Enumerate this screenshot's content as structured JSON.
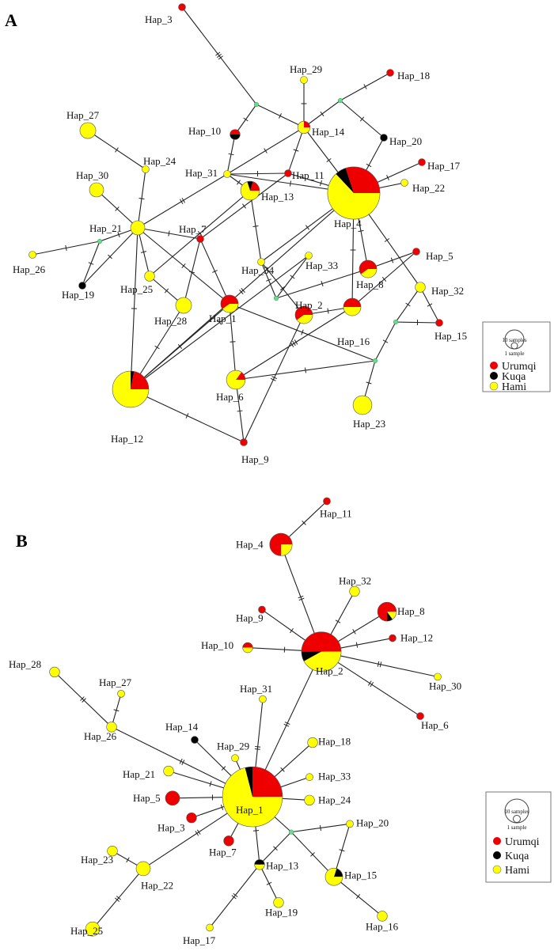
{
  "colors": {
    "Urumqi": "#ee0000",
    "Kuqa": "#000000",
    "Hami": "#ffff00",
    "median": "#66dd88"
  },
  "legend": {
    "large_label": "10 samples",
    "small_label": "1 sample",
    "populations": [
      "Urumqi",
      "Kuqa",
      "Hami"
    ]
  },
  "panels": [
    {
      "letter": "A",
      "nodes": [
        {
          "id": "Hap_3",
          "n": 1,
          "f": [
            1,
            0,
            0
          ]
        },
        {
          "id": "Hap_29",
          "n": 1,
          "f": [
            0,
            0,
            1
          ]
        },
        {
          "id": "Hap_18",
          "n": 1,
          "f": [
            1,
            0,
            0
          ]
        },
        {
          "id": "Hap_14",
          "n": 3,
          "f": [
            0.25,
            0,
            0.75
          ]
        },
        {
          "id": "Hap_10",
          "n": 2,
          "f": [
            0.5,
            0.5,
            0
          ]
        },
        {
          "id": "Hap_20",
          "n": 1,
          "f": [
            0,
            1,
            0
          ]
        },
        {
          "id": "Hap_17",
          "n": 1,
          "f": [
            1,
            0,
            0
          ]
        },
        {
          "id": "Hap_27",
          "n": 5,
          "f": [
            0,
            0,
            1
          ]
        },
        {
          "id": "Hap_24",
          "n": 1,
          "f": [
            0,
            0,
            1
          ]
        },
        {
          "id": "Hap_30",
          "n": 4,
          "f": [
            0,
            0,
            1
          ]
        },
        {
          "id": "Hap_31",
          "n": 1,
          "f": [
            0,
            0,
            1
          ]
        },
        {
          "id": "Hap_11",
          "n": 1,
          "f": [
            1,
            0,
            0
          ]
        },
        {
          "id": "Hap_4",
          "n": 54,
          "f": [
            0.3,
            0.07,
            0.63
          ]
        },
        {
          "id": "Hap_22",
          "n": 1,
          "f": [
            0,
            0,
            1
          ]
        },
        {
          "id": "Hap_13",
          "n": 7,
          "f": [
            0.2,
            0.1,
            0.7
          ]
        },
        {
          "id": "Hap_21",
          "n": 4,
          "f": [
            0,
            0,
            1
          ]
        },
        {
          "id": "Hap_7",
          "n": 1,
          "f": [
            1,
            0,
            0
          ]
        },
        {
          "id": "Hap_26",
          "n": 1,
          "f": [
            0,
            0,
            1
          ]
        },
        {
          "id": "Hap_34",
          "n": 1,
          "f": [
            0,
            0,
            1
          ]
        },
        {
          "id": "Hap_33",
          "n": 1,
          "f": [
            0,
            0,
            1
          ]
        },
        {
          "id": "Hap_5",
          "n": 1,
          "f": [
            1,
            0,
            0
          ]
        },
        {
          "id": "Hap_8",
          "n": 6,
          "f": [
            0.6,
            0,
            0.4
          ]
        },
        {
          "id": "Hap_19",
          "n": 1,
          "f": [
            0,
            1,
            0
          ]
        },
        {
          "id": "Hap_25",
          "n": 2,
          "f": [
            0,
            0,
            1
          ]
        },
        {
          "id": "Hap_32",
          "n": 2,
          "f": [
            0,
            0,
            1
          ]
        },
        {
          "id": "Hap_28",
          "n": 5,
          "f": [
            0,
            0,
            1
          ]
        },
        {
          "id": "Hap_1",
          "n": 6,
          "f": [
            0.6,
            0,
            0.4
          ]
        },
        {
          "id": "Hap_2",
          "n": 6,
          "f": [
            0.6,
            0,
            0.4
          ]
        },
        {
          "id": "Hap_16",
          "n": 6,
          "f": [
            0.5,
            0,
            0.5
          ]
        },
        {
          "id": "Hap_15",
          "n": 1,
          "f": [
            1,
            0,
            0
          ]
        },
        {
          "id": "Hap_6",
          "n": 7,
          "f": [
            0.15,
            0,
            0.85
          ]
        },
        {
          "id": "Hap_23",
          "n": 7,
          "f": [
            0,
            0,
            1
          ]
        },
        {
          "id": "Hap_12",
          "n": 26,
          "f": [
            0.22,
            0.03,
            0.75
          ]
        },
        {
          "id": "Hap_9",
          "n": 1,
          "f": [
            1,
            0,
            0
          ]
        }
      ],
      "medians": [
        "mA1",
        "mA2",
        "mA3",
        "mA4",
        "mA5",
        "mA6"
      ],
      "edges": [
        [
          "Hap_3",
          "mA1",
          3
        ],
        [
          "mA1",
          "Hap_10",
          1
        ],
        [
          "mA1",
          "Hap_14",
          1
        ],
        [
          "Hap_29",
          "Hap_14",
          1
        ],
        [
          "Hap_14",
          "mA2",
          1
        ],
        [
          "mA2",
          "Hap_18",
          1
        ],
        [
          "mA2",
          "Hap_20",
          1
        ],
        [
          "Hap_20",
          "Hap_4",
          1
        ],
        [
          "Hap_17",
          "Hap_4",
          1
        ],
        [
          "Hap_22",
          "Hap_4",
          0
        ],
        [
          "Hap_14",
          "Hap_4",
          1
        ],
        [
          "Hap_14",
          "Hap_11",
          1
        ],
        [
          "Hap_14",
          "Hap_31",
          1
        ],
        [
          "Hap_10",
          "Hap_31",
          1
        ],
        [
          "Hap_31",
          "Hap_11",
          1
        ],
        [
          "Hap_11",
          "Hap_4",
          1
        ],
        [
          "Hap_31",
          "Hap_4",
          1
        ],
        [
          "Hap_31",
          "Hap_13",
          1
        ],
        [
          "Hap_31",
          "Hap_21",
          2
        ],
        [
          "Hap_11",
          "Hap_7",
          1
        ],
        [
          "Hap_13",
          "Hap_25",
          1
        ],
        [
          "Hap_27",
          "Hap_24",
          1
        ],
        [
          "Hap_24",
          "Hap_21",
          1
        ],
        [
          "Hap_30",
          "Hap_21",
          1
        ],
        [
          "Hap_21",
          "mA3",
          1
        ],
        [
          "mA3",
          "Hap_26",
          1
        ],
        [
          "mA3",
          "Hap_19",
          1
        ],
        [
          "Hap_21",
          "Hap_19",
          1
        ],
        [
          "Hap_21",
          "Hap_7",
          1
        ],
        [
          "Hap_21",
          "Hap_25",
          1
        ],
        [
          "Hap_21",
          "Hap_1",
          1
        ],
        [
          "Hap_25",
          "Hap_28",
          1
        ],
        [
          "Hap_7",
          "Hap_28",
          1
        ],
        [
          "Hap_7",
          "Hap_1",
          1
        ],
        [
          "Hap_21",
          "Hap_12",
          1
        ],
        [
          "Hap_13",
          "Hap_34",
          1
        ],
        [
          "Hap_34",
          "Hap_2",
          1
        ],
        [
          "Hap_34",
          "mA4",
          1
        ],
        [
          "Hap_4",
          "Hap_34",
          1
        ],
        [
          "Hap_4",
          "Hap_12",
          2
        ],
        [
          "Hap_1",
          "Hap_12",
          1
        ],
        [
          "Hap_33",
          "Hap_12",
          1
        ],
        [
          "Hap_4",
          "Hap_8",
          1
        ],
        [
          "Hap_4",
          "Hap_16",
          1
        ],
        [
          "Hap_4",
          "Hap_32",
          1
        ],
        [
          "Hap_32",
          "Hap_15",
          1
        ],
        [
          "mA5",
          "Hap_15",
          1
        ],
        [
          "mA5",
          "Hap_32",
          1
        ],
        [
          "mA5",
          "mA6",
          1
        ],
        [
          "mA6",
          "Hap_23",
          1
        ],
        [
          "mA6",
          "Hap_6",
          1
        ],
        [
          "Hap_1",
          "mA6",
          1
        ],
        [
          "mA4",
          "Hap_8",
          1
        ],
        [
          "mA4",
          "Hap_33",
          1
        ],
        [
          "Hap_8",
          "Hap_5",
          1
        ],
        [
          "Hap_5",
          "Hap_16",
          1
        ],
        [
          "Hap_16",
          "Hap_6",
          3
        ],
        [
          "Hap_2",
          "Hap_16",
          1
        ],
        [
          "Hap_2",
          "Hap_9",
          2
        ],
        [
          "Hap_1",
          "Hap_6",
          1
        ],
        [
          "Hap_6",
          "Hap_9",
          1
        ],
        [
          "Hap_12",
          "Hap_9",
          1
        ],
        [
          "Hap_12",
          "Hap_28",
          1
        ]
      ]
    },
    {
      "letter": "B",
      "nodes": [
        {
          "id": "Hap_11",
          "n": 1,
          "f": [
            1,
            0,
            0
          ]
        },
        {
          "id": "Hap_4",
          "n": 10,
          "f": [
            0.75,
            0,
            0.25
          ]
        },
        {
          "id": "Hap_32",
          "n": 2,
          "f": [
            0,
            0,
            1
          ]
        },
        {
          "id": "Hap_8",
          "n": 7,
          "f": [
            0.75,
            0.1,
            0.15
          ]
        },
        {
          "id": "Hap_9",
          "n": 1,
          "f": [
            1,
            0,
            0
          ]
        },
        {
          "id": "Hap_12",
          "n": 1,
          "f": [
            1,
            0,
            0
          ]
        },
        {
          "id": "Hap_10",
          "n": 2,
          "f": [
            0.5,
            0,
            0.5
          ]
        },
        {
          "id": "Hap_2",
          "n": 31,
          "f": [
            0.5,
            0.08,
            0.42
          ]
        },
        {
          "id": "Hap_30",
          "n": 1,
          "f": [
            0,
            0,
            1
          ]
        },
        {
          "id": "Hap_6",
          "n": 1,
          "f": [
            1,
            0,
            0
          ]
        },
        {
          "id": "Hap_28",
          "n": 2,
          "f": [
            0,
            0,
            1
          ]
        },
        {
          "id": "Hap_27",
          "n": 1,
          "f": [
            0,
            0,
            1
          ]
        },
        {
          "id": "Hap_26",
          "n": 2,
          "f": [
            0,
            0,
            1
          ]
        },
        {
          "id": "Hap_31",
          "n": 1,
          "f": [
            0,
            0,
            1
          ]
        },
        {
          "id": "Hap_14",
          "n": 1,
          "f": [
            0,
            1,
            0
          ]
        },
        {
          "id": "Hap_18",
          "n": 2,
          "f": [
            0,
            0,
            1
          ]
        },
        {
          "id": "Hap_29",
          "n": 1,
          "f": [
            0,
            0,
            1
          ]
        },
        {
          "id": "Hap_21",
          "n": 2,
          "f": [
            0,
            0,
            1
          ]
        },
        {
          "id": "Hap_33",
          "n": 1,
          "f": [
            0,
            0,
            1
          ]
        },
        {
          "id": "Hap_1",
          "n": 71,
          "f": [
            0.25,
            0.04,
            0.71
          ]
        },
        {
          "id": "Hap_5",
          "n": 4,
          "f": [
            1,
            0,
            0
          ]
        },
        {
          "id": "Hap_24",
          "n": 2,
          "f": [
            0,
            0,
            1
          ]
        },
        {
          "id": "Hap_3",
          "n": 2,
          "f": [
            1,
            0,
            0
          ]
        },
        {
          "id": "Hap_20",
          "n": 1,
          "f": [
            0,
            0,
            1
          ]
        },
        {
          "id": "Hap_7",
          "n": 2,
          "f": [
            1,
            0,
            0
          ]
        },
        {
          "id": "Hap_23",
          "n": 2,
          "f": [
            0,
            0,
            1
          ]
        },
        {
          "id": "Hap_22",
          "n": 4,
          "f": [
            0,
            0,
            1
          ]
        },
        {
          "id": "Hap_13",
          "n": 2,
          "f": [
            0,
            0.5,
            0.5
          ]
        },
        {
          "id": "Hap_15",
          "n": 6,
          "f": [
            0,
            0.2,
            0.8
          ]
        },
        {
          "id": "Hap_19",
          "n": 2,
          "f": [
            0,
            0,
            1
          ]
        },
        {
          "id": "Hap_16",
          "n": 2,
          "f": [
            0,
            0,
            1
          ]
        },
        {
          "id": "Hap_25",
          "n": 4,
          "f": [
            0,
            0,
            1
          ]
        },
        {
          "id": "Hap_17",
          "n": 1,
          "f": [
            0,
            0,
            1
          ]
        }
      ],
      "medians": [
        "mB1"
      ],
      "edges": [
        [
          "Hap_11",
          "Hap_4",
          1
        ],
        [
          "Hap_4",
          "Hap_2",
          2
        ],
        [
          "Hap_32",
          "Hap_2",
          1
        ],
        [
          "Hap_8",
          "Hap_2",
          1
        ],
        [
          "Hap_9",
          "Hap_2",
          1
        ],
        [
          "Hap_12",
          "Hap_2",
          1
        ],
        [
          "Hap_10",
          "Hap_2",
          1
        ],
        [
          "Hap_30",
          "Hap_2",
          2
        ],
        [
          "Hap_6",
          "Hap_2",
          2
        ],
        [
          "Hap_2",
          "Hap_1",
          2
        ],
        [
          "Hap_28",
          "Hap_26",
          2
        ],
        [
          "Hap_27",
          "Hap_26",
          1
        ],
        [
          "Hap_26",
          "Hap_1",
          2
        ],
        [
          "Hap_31",
          "Hap_1",
          2
        ],
        [
          "Hap_14",
          "Hap_1",
          1
        ],
        [
          "Hap_29",
          "Hap_1",
          0
        ],
        [
          "Hap_18",
          "Hap_1",
          1
        ],
        [
          "Hap_21",
          "Hap_1",
          1
        ],
        [
          "Hap_33",
          "Hap_1",
          0
        ],
        [
          "Hap_5",
          "Hap_1",
          1
        ],
        [
          "Hap_24",
          "Hap_1",
          0
        ],
        [
          "Hap_3",
          "Hap_1",
          1
        ],
        [
          "Hap_7",
          "Hap_1",
          0
        ],
        [
          "Hap_22",
          "Hap_1",
          2
        ],
        [
          "Hap_23",
          "Hap_22",
          1
        ],
        [
          "Hap_25",
          "Hap_22",
          2
        ],
        [
          "Hap_13",
          "Hap_1",
          1
        ],
        [
          "Hap_1",
          "mB1",
          0
        ],
        [
          "mB1",
          "Hap_20",
          1
        ],
        [
          "mB1",
          "Hap_15",
          1
        ],
        [
          "Hap_20",
          "Hap_15",
          1
        ],
        [
          "mB1",
          "Hap_13",
          1
        ],
        [
          "Hap_15",
          "Hap_16",
          1
        ],
        [
          "Hap_13",
          "Hap_19",
          1
        ],
        [
          "Hap_13",
          "Hap_17",
          2
        ]
      ]
    }
  ]
}
